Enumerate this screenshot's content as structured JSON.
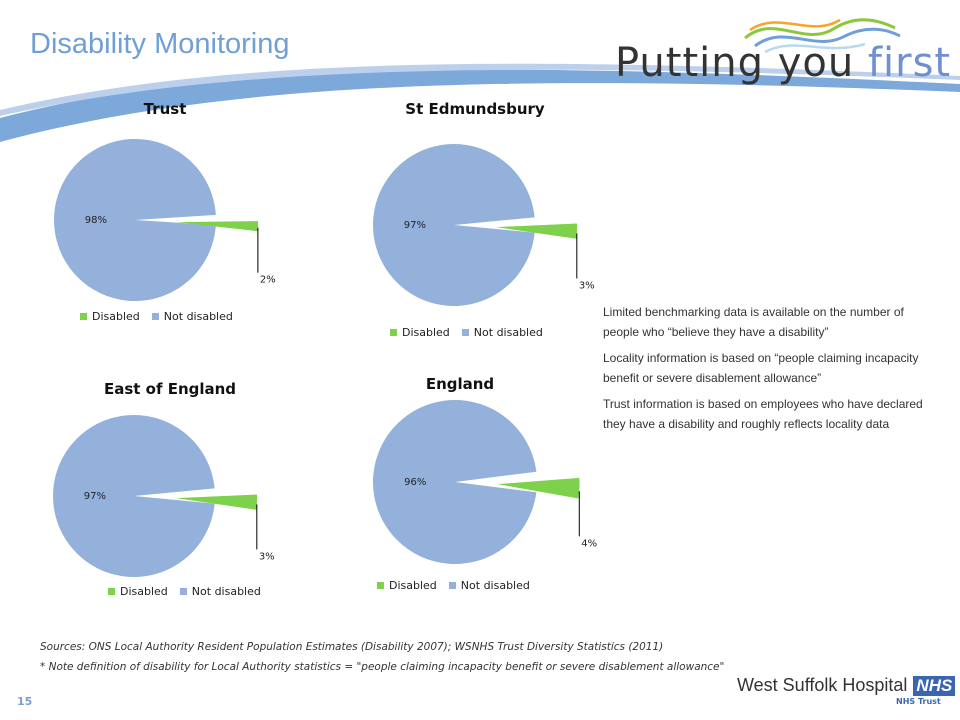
{
  "slide": {
    "title": "Disability Monitoring",
    "brand_text_a": "Putting you",
    "brand_text_b": "first",
    "slide_number": "15",
    "org_name": "West Suffolk Hospital",
    "org_badge": "NHS",
    "org_sub": "NHS Trust"
  },
  "colors": {
    "disabled": "#7ed14a",
    "not_disabled": "#93b1da",
    "title_blue": "#6f9fd6"
  },
  "notes": [
    "Limited benchmarking data is available on the number of people who “believe they have a disability”",
    "Locality information is based on “people claiming incapacity benefit or severe disablement allowance”",
    "Trust information is based on employees who have declared they have a disability and roughly reflects locality data"
  ],
  "sources": [
    "Sources: ONS Local Authority Resident Population Estimates (Disability 2007); WSNHS Trust Diversity Statistics (2011)",
    "* Note definition of disability for Local Authority statistics = \"people claiming incapacity benefit or severe disablement allowance\""
  ],
  "chart_data": [
    {
      "type": "pie",
      "title": "Trust",
      "categories": [
        "Disabled",
        "Not disabled"
      ],
      "values": [
        2,
        98
      ],
      "labels": [
        "2%",
        "98%"
      ],
      "legend": "bottom"
    },
    {
      "type": "pie",
      "title": "St Edmundsbury",
      "categories": [
        "Disabled",
        "Not disabled"
      ],
      "values": [
        3,
        97
      ],
      "labels": [
        "3%",
        "97%"
      ],
      "legend": "bottom"
    },
    {
      "type": "pie",
      "title": "East of England",
      "categories": [
        "Disabled",
        "Not disabled"
      ],
      "values": [
        3,
        97
      ],
      "labels": [
        "3%",
        "97%"
      ],
      "legend": "bottom"
    },
    {
      "type": "pie",
      "title": "England",
      "categories": [
        "Disabled",
        "Not disabled"
      ],
      "values": [
        4,
        96
      ],
      "labels": [
        "4%",
        "96%"
      ],
      "legend": "bottom"
    }
  ]
}
